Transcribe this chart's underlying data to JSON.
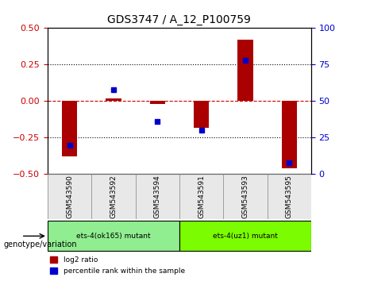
{
  "title": "GDS3747 / A_12_P100759",
  "samples": [
    "GSM543590",
    "GSM543592",
    "GSM543594",
    "GSM543591",
    "GSM543593",
    "GSM543595"
  ],
  "log2_ratios": [
    -0.38,
    0.02,
    -0.02,
    -0.18,
    0.42,
    -0.46
  ],
  "percentile_ranks": [
    20,
    58,
    36,
    30,
    78,
    8
  ],
  "bar_color": "#AA0000",
  "dot_color": "#0000CC",
  "ylim_left": [
    -0.5,
    0.5
  ],
  "ylim_right": [
    0,
    100
  ],
  "yticks_left": [
    -0.5,
    -0.25,
    0,
    0.25,
    0.5
  ],
  "yticks_right": [
    0,
    25,
    50,
    75,
    100
  ],
  "hline_color": "#CC0000",
  "hline_style": "dashed",
  "dotted_color": "black",
  "groups": [
    {
      "label": "ets-4(ok165) mutant",
      "indices": [
        0,
        1,
        2
      ],
      "color": "#90EE90"
    },
    {
      "label": "ets-4(uz1) mutant",
      "indices": [
        3,
        4,
        5
      ],
      "color": "#7CFC00"
    }
  ],
  "genotype_label": "genotype/variation",
  "legend_log2": "log2 ratio",
  "legend_pct": "percentile rank within the sample",
  "background_plot": "#FFFFFF",
  "tick_color_left": "#CC0000",
  "tick_color_right": "#0000CC"
}
